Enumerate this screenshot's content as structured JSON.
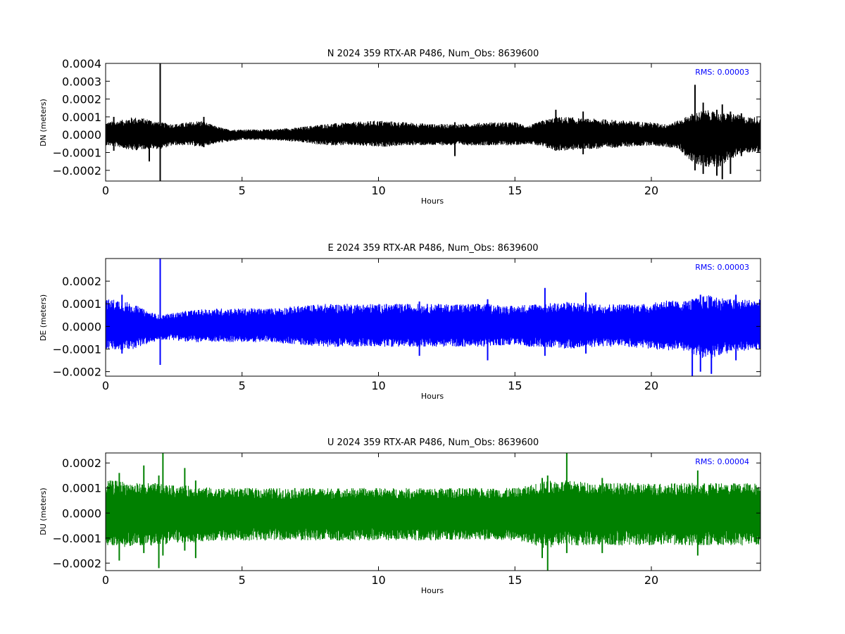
{
  "chart_data": [
    {
      "type": "line",
      "title": "N 2024 359 RTX-AR  P486, Num_Obs: 8639600",
      "xlabel": "Hours",
      "ylabel": "DN (meters)",
      "color": "#000000",
      "xlim": [
        0,
        24
      ],
      "ylim": [
        -0.00026,
        0.0004
      ],
      "xticks": [
        0,
        5,
        10,
        15,
        20
      ],
      "xtick_labels": [
        "0",
        "5",
        "10",
        "15",
        "20"
      ],
      "yticks": [
        -0.0002,
        -0.0001,
        0.0,
        0.0001,
        0.0002,
        0.0003,
        0.0004
      ],
      "ytick_labels": [
        "−0.0002",
        "−0.0001",
        "0.0000",
        "0.0001",
        "0.0002",
        "0.0003",
        "0.0004"
      ],
      "rms_label": "RMS:  0.00003",
      "envelope": {
        "x": [
          0,
          0.5,
          1,
          1.5,
          2,
          2.5,
          3,
          3.5,
          4,
          4.5,
          5,
          5.5,
          6,
          7,
          8,
          9,
          10,
          11,
          12,
          13,
          14,
          15,
          15.5,
          16,
          16.5,
          17,
          17.5,
          18,
          19,
          20,
          20.5,
          21,
          21.5,
          22,
          22.5,
          23,
          23.5,
          24
        ],
        "upper": [
          7e-05,
          8e-05,
          0.0001,
          9e-05,
          7e-05,
          6e-05,
          7e-05,
          8e-05,
          5e-05,
          3e-05,
          3e-05,
          3e-05,
          3e-05,
          4e-05,
          6e-05,
          7e-05,
          8e-05,
          7e-05,
          6e-05,
          6e-05,
          7e-05,
          7e-05,
          5e-05,
          8e-05,
          0.0001,
          0.0001,
          9e-05,
          9e-05,
          8e-05,
          7e-05,
          6e-05,
          8e-05,
          0.00012,
          0.00014,
          0.00012,
          0.00012,
          0.0001,
          0.0001
        ],
        "lower": [
          -6e-05,
          -7e-05,
          -9e-05,
          -8e-05,
          -8e-05,
          -6e-05,
          -6e-05,
          -7e-05,
          -5e-05,
          -4e-05,
          -3e-05,
          -3e-05,
          -3e-05,
          -4e-05,
          -6e-05,
          -6e-05,
          -7e-05,
          -6e-05,
          -6e-05,
          -6e-05,
          -6e-05,
          -6e-05,
          -5e-05,
          -7e-05,
          -9e-05,
          -9e-05,
          -8e-05,
          -8e-05,
          -7e-05,
          -6e-05,
          -7e-05,
          -8e-05,
          -0.00016,
          -0.00018,
          -0.00018,
          -0.00013,
          -0.0001,
          -0.0001
        ]
      },
      "spikes": [
        {
          "x": 2.0,
          "low": -0.00026,
          "high": 0.0004
        },
        {
          "x": 0.3,
          "low": -9e-05,
          "high": 0.0001
        },
        {
          "x": 1.6,
          "low": -0.00015,
          "high": 8e-05
        },
        {
          "x": 3.6,
          "low": -7e-05,
          "high": 0.0001
        },
        {
          "x": 12.8,
          "low": -0.00012,
          "high": 7e-05
        },
        {
          "x": 16.5,
          "low": -9e-05,
          "high": 0.00014
        },
        {
          "x": 17.5,
          "low": -0.00011,
          "high": 0.00013
        },
        {
          "x": 21.6,
          "low": -0.0002,
          "high": 0.00028
        },
        {
          "x": 21.9,
          "low": -0.00022,
          "high": 0.00018
        },
        {
          "x": 22.4,
          "low": -0.00023,
          "high": 0.00014
        },
        {
          "x": 22.6,
          "low": -0.00025,
          "high": 0.00017
        },
        {
          "x": 22.9,
          "low": -0.00022,
          "high": 0.00013
        },
        {
          "x": 23.3,
          "low": -0.00012,
          "high": 0.00012
        }
      ]
    },
    {
      "type": "line",
      "title": "E 2024 359 RTX-AR  P486, Num_Obs: 8639600",
      "xlabel": "Hours",
      "ylabel": "DE (meters)",
      "color": "#0000ff",
      "xlim": [
        0,
        24
      ],
      "ylim": [
        -0.00022,
        0.0003
      ],
      "xticks": [
        0,
        5,
        10,
        15,
        20
      ],
      "xtick_labels": [
        "0",
        "5",
        "10",
        "15",
        "20"
      ],
      "yticks": [
        -0.0002,
        -0.0001,
        0.0,
        0.0001,
        0.0002
      ],
      "ytick_labels": [
        "−0.0002",
        "−0.0001",
        "0.0000",
        "0.0001",
        "0.0002"
      ],
      "rms_label": "RMS:  0.00003",
      "envelope": {
        "x": [
          0,
          0.5,
          1,
          1.5,
          2,
          2.5,
          3,
          4,
          5,
          6,
          7,
          8,
          9,
          10,
          11,
          12,
          13,
          14,
          15,
          15.5,
          16,
          17,
          18,
          19,
          20,
          20.5,
          21,
          21.5,
          22,
          22.5,
          23,
          23.5,
          24
        ],
        "upper": [
          0.00012,
          0.00012,
          0.0001,
          7e-05,
          5e-05,
          6e-05,
          7e-05,
          8e-05,
          8e-05,
          8e-05,
          9e-05,
          0.0001,
          0.0001,
          0.0001,
          0.0001,
          0.0001,
          0.0001,
          0.0001,
          9e-05,
          0.0001,
          0.0001,
          0.00011,
          0.0001,
          0.0001,
          0.0001,
          0.00012,
          0.00011,
          0.00012,
          0.00014,
          0.00013,
          0.00012,
          0.00012,
          0.00012
        ],
        "lower": [
          -0.0001,
          -0.00011,
          -0.0001,
          -8e-05,
          -6e-05,
          -6e-05,
          -7e-05,
          -7e-05,
          -7e-05,
          -7e-05,
          -8e-05,
          -9e-05,
          -9e-05,
          -9e-05,
          -9e-05,
          -9e-05,
          -9e-05,
          -9e-05,
          -8e-05,
          -9e-05,
          -9e-05,
          -0.0001,
          -9e-05,
          -9e-05,
          -0.0001,
          -0.00011,
          -0.0001,
          -0.00012,
          -0.00015,
          -0.00013,
          -0.00011,
          -0.00011,
          -0.0001
        ]
      },
      "spikes": [
        {
          "x": 2.0,
          "low": -0.00017,
          "high": 0.0003
        },
        {
          "x": 0.6,
          "low": -0.00012,
          "high": 0.00014
        },
        {
          "x": 11.5,
          "low": -0.00013,
          "high": 0.00011
        },
        {
          "x": 14.0,
          "low": -0.00015,
          "high": 0.00012
        },
        {
          "x": 16.1,
          "low": -0.00013,
          "high": 0.00017
        },
        {
          "x": 17.6,
          "low": -0.00012,
          "high": 0.00015
        },
        {
          "x": 21.5,
          "low": -0.00022,
          "high": 0.00012
        },
        {
          "x": 21.8,
          "low": -0.0002,
          "high": 0.00014
        },
        {
          "x": 22.2,
          "low": -0.00021,
          "high": 0.00013
        },
        {
          "x": 23.1,
          "low": -0.00015,
          "high": 0.00014
        }
      ]
    },
    {
      "type": "line",
      "title": "U 2024 359 RTX-AR  P486, Num_Obs: 8639600",
      "xlabel": "Hours",
      "ylabel": "DU (meters)",
      "color": "#008000",
      "xlim": [
        0,
        24
      ],
      "ylim": [
        -0.00023,
        0.00024
      ],
      "xticks": [
        0,
        5,
        10,
        15,
        20
      ],
      "xtick_labels": [
        "0",
        "5",
        "10",
        "15",
        "20"
      ],
      "yticks": [
        -0.0002,
        -0.0001,
        0.0,
        0.0001,
        0.0002
      ],
      "ytick_labels": [
        "−0.0002",
        "−0.0001",
        "0.0000",
        "0.0001",
        "0.0002"
      ],
      "rms_label": "RMS:  0.00004",
      "envelope": {
        "x": [
          0,
          0.5,
          1,
          1.5,
          2,
          2.5,
          3,
          4,
          5,
          6,
          7,
          8,
          9,
          10,
          11,
          12,
          13,
          14,
          15,
          15.5,
          16,
          17,
          18,
          19,
          20,
          21,
          22,
          23,
          24
        ],
        "upper": [
          0.00013,
          0.00013,
          0.00012,
          0.00012,
          0.00012,
          0.00011,
          0.00011,
          0.0001,
          0.0001,
          0.0001,
          0.0001,
          0.0001,
          0.0001,
          0.0001,
          0.0001,
          0.0001,
          0.0001,
          0.0001,
          0.0001,
          0.00011,
          0.00013,
          0.00013,
          0.00012,
          0.00012,
          0.00012,
          0.00012,
          0.00012,
          0.00012,
          0.00012
        ],
        "lower": [
          -0.00013,
          -0.00014,
          -0.00013,
          -0.00013,
          -0.00013,
          -0.00012,
          -0.00012,
          -0.00011,
          -0.00011,
          -0.00011,
          -0.00011,
          -0.00011,
          -0.00011,
          -0.00011,
          -0.00011,
          -0.00011,
          -0.00011,
          -0.00011,
          -0.00011,
          -0.00012,
          -0.00014,
          -0.00013,
          -0.00013,
          -0.00013,
          -0.00013,
          -0.00013,
          -0.00013,
          -0.00013,
          -0.00013
        ]
      },
      "spikes": [
        {
          "x": 0.5,
          "low": -0.00019,
          "high": 0.00016
        },
        {
          "x": 1.4,
          "low": -0.00016,
          "high": 0.00019
        },
        {
          "x": 1.95,
          "low": -0.00022,
          "high": 0.00015
        },
        {
          "x": 2.1,
          "low": -0.00017,
          "high": 0.00024
        },
        {
          "x": 2.9,
          "low": -0.00015,
          "high": 0.00018
        },
        {
          "x": 3.3,
          "low": -0.00018,
          "high": 0.00013
        },
        {
          "x": 16.2,
          "low": -0.00023,
          "high": 0.00015
        },
        {
          "x": 16.0,
          "low": -0.00018,
          "high": 0.00014
        },
        {
          "x": 16.9,
          "low": -0.00016,
          "high": 0.00024
        },
        {
          "x": 18.2,
          "low": -0.00016,
          "high": 0.00014
        },
        {
          "x": 21.7,
          "low": -0.00017,
          "high": 0.00017
        }
      ]
    }
  ]
}
